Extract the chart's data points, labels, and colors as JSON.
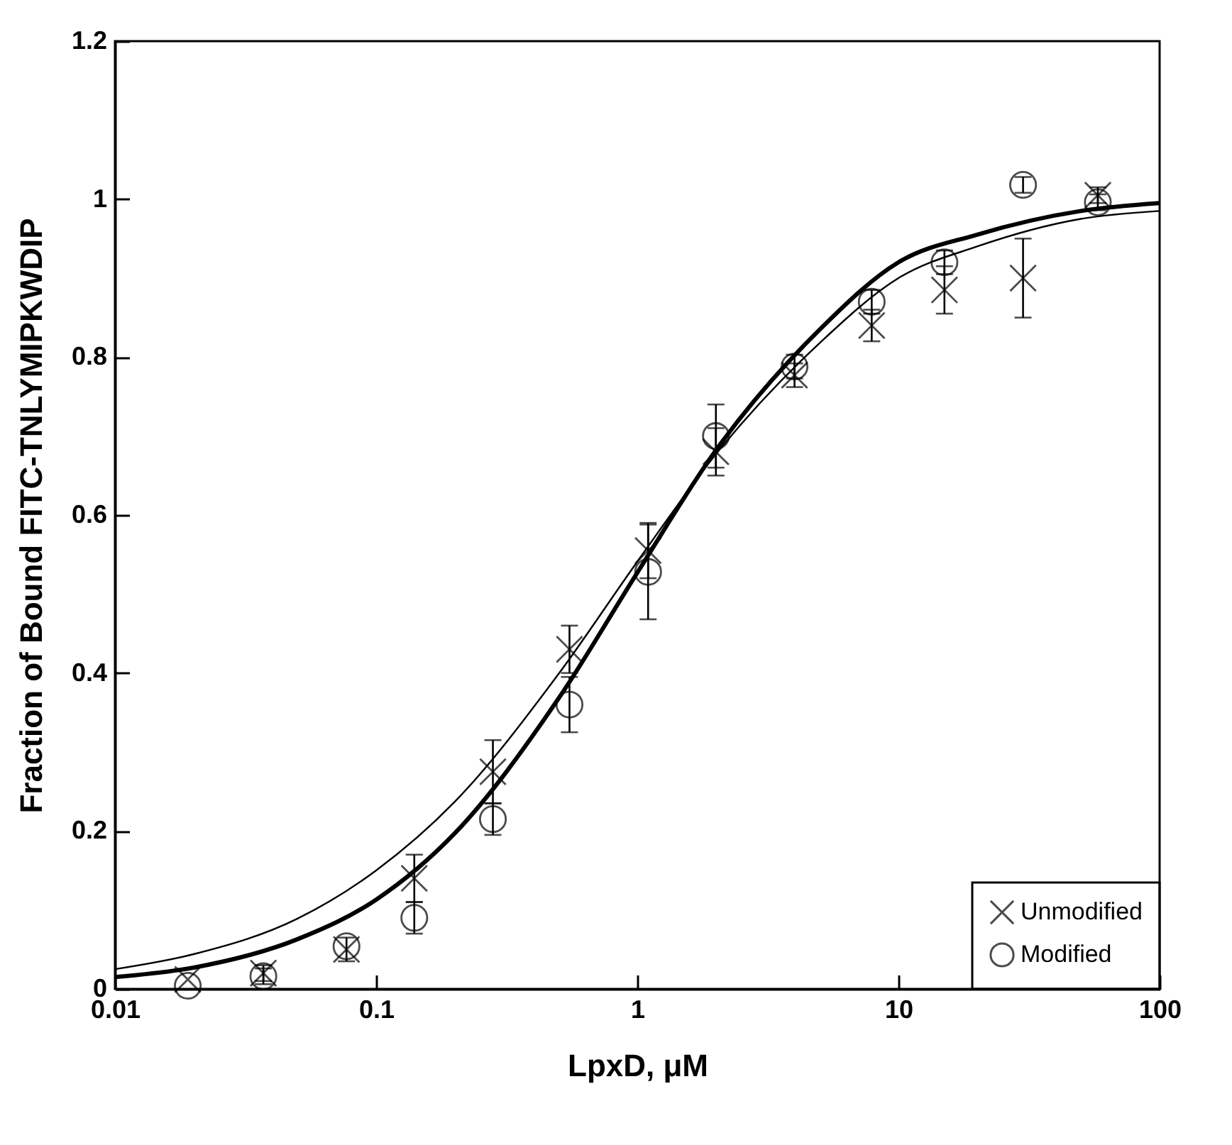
{
  "chart_data": {
    "type": "scatter",
    "xlabel": "LpxD, μM",
    "ylabel": "Fraction of Bound FITC-TNLYMIPKWDIP",
    "log": "x",
    "xlim": [
      0.01,
      100
    ],
    "xticks": [
      0.01,
      0.1,
      1,
      10,
      100
    ],
    "ylim": [
      0,
      1.2
    ],
    "yticks": [
      0,
      0.2,
      0.4,
      0.6,
      0.8,
      1,
      1.2
    ],
    "grid": false,
    "legend": "bottom right",
    "line_style": "solid",
    "series": [
      {
        "name": "Unmodified",
        "marker": "cross",
        "color": "#000000",
        "x": [
          0.019,
          0.037,
          0.077,
          0.14,
          0.28,
          0.55,
          1.1,
          2.0,
          4.0,
          7.9,
          15,
          30,
          58
        ],
        "values": [
          0.012,
          0.02,
          0.05,
          0.14,
          0.275,
          0.43,
          0.555,
          0.68,
          0.777,
          0.84,
          0.885,
          0.9,
          1.005
        ],
        "errors": [
          null,
          0.01,
          0.015,
          0.03,
          0.04,
          0.03,
          0.035,
          0.03,
          0.015,
          0.02,
          0.03,
          0.05,
          0.01
        ]
      },
      {
        "name": "Modified",
        "marker": "circle",
        "color": "#000000",
        "x": [
          0.019,
          0.037,
          0.077,
          0.14,
          0.28,
          0.55,
          1.1,
          2.0,
          4.0,
          7.9,
          15,
          30,
          58
        ],
        "values": [
          0.004,
          0.016,
          0.054,
          0.09,
          0.215,
          0.36,
          0.528,
          0.7,
          0.788,
          0.87,
          0.92,
          1.018,
          0.996
        ],
        "errors": [
          null,
          0.01,
          null,
          0.02,
          0.02,
          0.035,
          0.06,
          0.04,
          0.015,
          0.015,
          0.015,
          0.01,
          0.01
        ]
      },
      {
        "type": "line",
        "color": "#000000",
        "x": [
          0.01,
          0.02,
          0.05,
          0.1,
          0.2,
          0.5,
          1,
          2,
          5,
          10,
          20,
          50,
          100
        ],
        "values": [
          0.025,
          0.044,
          0.089,
          0.15,
          0.237,
          0.399,
          0.541,
          0.677,
          0.818,
          0.9,
          0.94,
          0.975,
          0.985
        ]
      },
      {
        "type": "line",
        "color": "#000000",
        "x": [
          0.01,
          0.02,
          0.05,
          0.1,
          0.2,
          0.5,
          1,
          2,
          5,
          10,
          20,
          50,
          100
        ],
        "values": [
          0.015,
          0.027,
          0.063,
          0.113,
          0.197,
          0.368,
          0.527,
          0.682,
          0.835,
          0.92,
          0.955,
          0.985,
          0.995
        ]
      }
    ]
  }
}
